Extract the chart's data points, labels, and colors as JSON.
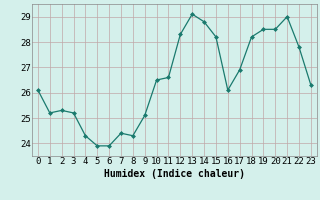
{
  "x": [
    0,
    1,
    2,
    3,
    4,
    5,
    6,
    7,
    8,
    9,
    10,
    11,
    12,
    13,
    14,
    15,
    16,
    17,
    18,
    19,
    20,
    21,
    22,
    23
  ],
  "y": [
    26.1,
    25.2,
    25.3,
    25.2,
    24.3,
    23.9,
    23.9,
    24.4,
    24.3,
    25.1,
    26.5,
    26.6,
    28.3,
    29.1,
    28.8,
    28.2,
    26.1,
    26.9,
    28.2,
    28.5,
    28.5,
    29.0,
    27.8,
    26.3
  ],
  "line_color": "#1a7a6e",
  "marker_color": "#1a7a6e",
  "bg_color": "#d4f0eb",
  "grid_color": "#c0a8a8",
  "xlabel": "Humidex (Indice chaleur)",
  "ylim": [
    23.5,
    29.5
  ],
  "yticks": [
    24,
    25,
    26,
    27,
    28,
    29
  ],
  "xlim": [
    -0.5,
    23.5
  ],
  "xticks": [
    0,
    1,
    2,
    3,
    4,
    5,
    6,
    7,
    8,
    9,
    10,
    11,
    12,
    13,
    14,
    15,
    16,
    17,
    18,
    19,
    20,
    21,
    22,
    23
  ],
  "xlabel_fontsize": 7,
  "tick_fontsize": 6.5
}
